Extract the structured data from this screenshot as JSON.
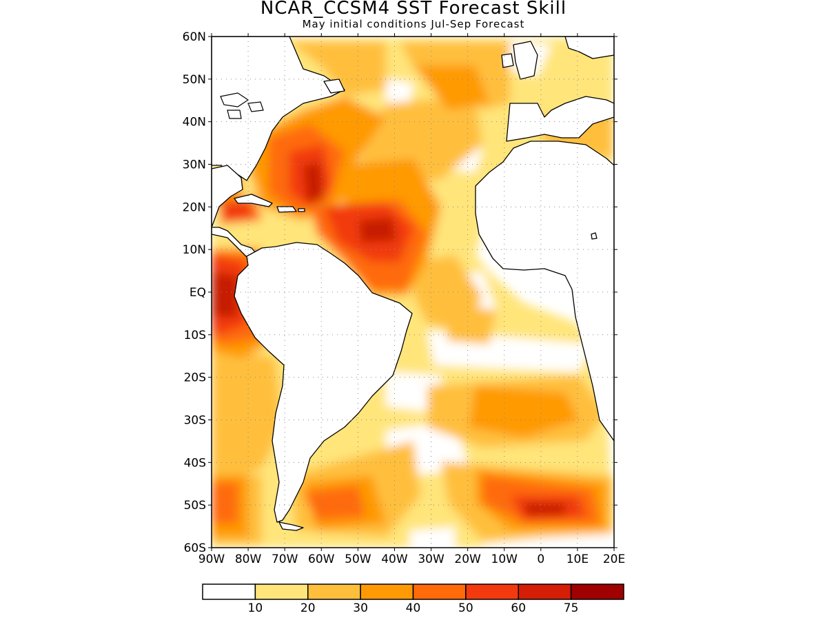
{
  "title": "NCAR_CCSM4 SST Forecast Skill",
  "subtitle": "May initial conditions  Jul-Sep Forecast",
  "axes": {
    "lat_labels": [
      "60N",
      "50N",
      "40N",
      "30N",
      "20N",
      "10N",
      "EQ",
      "10S",
      "20S",
      "30S",
      "40S",
      "50S",
      "60S"
    ],
    "lon_labels": [
      "90W",
      "80W",
      "70W",
      "60W",
      "50W",
      "40W",
      "30W",
      "20W",
      "10W",
      "0",
      "10E",
      "20E"
    ],
    "lat_range": [
      -60,
      60
    ],
    "lon_range": [
      -90,
      20
    ],
    "grid": "dotted"
  },
  "legend": {
    "placement": "bottom",
    "bins": [
      {
        "color": "#ffffff",
        "label": ""
      },
      {
        "color": "#ffe57a",
        "label": "10"
      },
      {
        "color": "#ffbf3c",
        "label": "20"
      },
      {
        "color": "#ff9a05",
        "label": "30"
      },
      {
        "color": "#ff6a0a",
        "label": "40"
      },
      {
        "color": "#f23a0e",
        "label": "50"
      },
      {
        "color": "#d41e06",
        "label": "60"
      },
      {
        "color": "#a00000",
        "label": "75"
      }
    ]
  }
}
